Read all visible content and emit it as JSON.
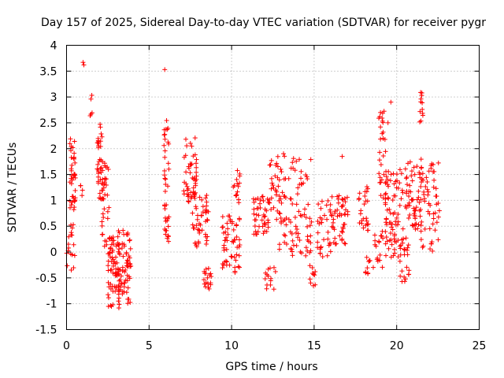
{
  "chart_data": {
    "type": "scatter",
    "title": "Day 157 of 2025, Sidereal Day-to-day VTEC variation (SDTVAR) for receiver pygr",
    "xlabel": "GPS time / hours",
    "ylabel": "SDTVAR / TECUs",
    "xlim": [
      0,
      25
    ],
    "ylim": [
      -1.5,
      4
    ],
    "xticks": [
      0,
      5,
      10,
      15,
      20,
      25
    ],
    "xtick_labels": [
      "0",
      "5",
      "10",
      "15",
      "20",
      "25"
    ],
    "yticks": [
      -1.5,
      -1,
      -0.5,
      0,
      0.5,
      1,
      1.5,
      2,
      2.5,
      3,
      3.5,
      4
    ],
    "ytick_labels": [
      "-1.5",
      "-1",
      "-0.5",
      "0",
      "0.5",
      "1",
      "1.5",
      "2",
      "2.5",
      "3",
      "3.5",
      "4"
    ],
    "grid": true,
    "marker": "+",
    "color": "#ff0000",
    "clusters": [
      {
        "x": [
          0.0,
          0.15
        ],
        "y": [
          -0.4,
          0.7
        ],
        "n": 6
      },
      {
        "x": [
          0.2,
          0.55
        ],
        "y": [
          0.8,
          2.2
        ],
        "n": 40
      },
      {
        "x": [
          0.25,
          0.5
        ],
        "y": [
          -0.4,
          0.6
        ],
        "n": 12
      },
      {
        "x": [
          0.85,
          1.0
        ],
        "y": [
          1.0,
          1.5
        ],
        "n": 4
      },
      {
        "x": [
          1.4,
          1.55
        ],
        "y": [
          2.3,
          3.3
        ],
        "n": 4
      },
      {
        "x": [
          1.85,
          2.2
        ],
        "y": [
          1.0,
          2.55
        ],
        "n": 35
      },
      {
        "x": [
          2.1,
          2.6
        ],
        "y": [
          0.1,
          1.8
        ],
        "n": 35
      },
      {
        "x": [
          2.5,
          3.2
        ],
        "y": [
          -1.1,
          0.3
        ],
        "n": 70
      },
      {
        "x": [
          3.1,
          3.9
        ],
        "y": [
          -1.05,
          0.45
        ],
        "n": 70
      },
      {
        "x": [
          5.9,
          6.2
        ],
        "y": [
          0.2,
          2.6
        ],
        "n": 40
      },
      {
        "x": [
          7.1,
          7.9
        ],
        "y": [
          0.9,
          2.25
        ],
        "n": 50
      },
      {
        "x": [
          7.6,
          8.6
        ],
        "y": [
          0.1,
          1.1
        ],
        "n": 45
      },
      {
        "x": [
          8.3,
          8.8
        ],
        "y": [
          -0.75,
          -0.3
        ],
        "n": 18
      },
      {
        "x": [
          9.4,
          10.5
        ],
        "y": [
          -0.4,
          0.7
        ],
        "n": 55
      },
      {
        "x": [
          10.1,
          10.5
        ],
        "y": [
          0.9,
          1.6
        ],
        "n": 15
      },
      {
        "x": [
          11.3,
          12.3
        ],
        "y": [
          0.3,
          1.1
        ],
        "n": 45
      },
      {
        "x": [
          12.0,
          12.7
        ],
        "y": [
          -0.75,
          -0.3
        ],
        "n": 14
      },
      {
        "x": [
          12.2,
          13.0
        ],
        "y": [
          0.6,
          1.8
        ],
        "n": 30
      },
      {
        "x": [
          12.8,
          14.9
        ],
        "y": [
          -0.1,
          1.95
        ],
        "n": 90
      },
      {
        "x": [
          14.7,
          15.1
        ],
        "y": [
          -0.7,
          -0.25
        ],
        "n": 10
      },
      {
        "x": [
          15.2,
          16.0
        ],
        "y": [
          -0.1,
          1.0
        ],
        "n": 30
      },
      {
        "x": [
          15.9,
          17.1
        ],
        "y": [
          0.15,
          1.1
        ],
        "n": 50
      },
      {
        "x": [
          17.7,
          18.3
        ],
        "y": [
          0.4,
          1.3
        ],
        "n": 25
      },
      {
        "x": [
          18.1,
          18.6
        ],
        "y": [
          -0.5,
          -0.1
        ],
        "n": 10
      },
      {
        "x": [
          18.9,
          19.5
        ],
        "y": [
          0.9,
          2.8
        ],
        "n": 35
      },
      {
        "x": [
          18.6,
          19.2
        ],
        "y": [
          -0.3,
          0.4
        ],
        "n": 16
      },
      {
        "x": [
          19.3,
          20.4
        ],
        "y": [
          -0.1,
          1.6
        ],
        "n": 70
      },
      {
        "x": [
          20.2,
          20.8
        ],
        "y": [
          -0.6,
          0.3
        ],
        "n": 25
      },
      {
        "x": [
          20.5,
          21.5
        ],
        "y": [
          0.4,
          1.8
        ],
        "n": 55
      },
      {
        "x": [
          21.3,
          21.6
        ],
        "y": [
          2.5,
          3.1
        ],
        "n": 12
      },
      {
        "x": [
          21.4,
          22.6
        ],
        "y": [
          0.0,
          1.8
        ],
        "n": 60
      }
    ],
    "outliers": [
      [
        1.0,
        3.67
      ],
      [
        1.05,
        3.62
      ],
      [
        5.95,
        3.53
      ],
      [
        1.48,
        2.96
      ],
      [
        19.65,
        2.9
      ],
      [
        16.7,
        1.85
      ]
    ]
  }
}
